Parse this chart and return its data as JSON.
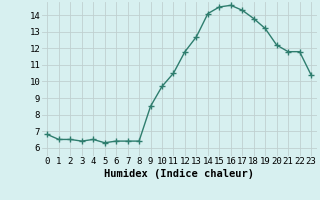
{
  "x": [
    0,
    1,
    2,
    3,
    4,
    5,
    6,
    7,
    8,
    9,
    10,
    11,
    12,
    13,
    14,
    15,
    16,
    17,
    18,
    19,
    20,
    21,
    22,
    23
  ],
  "y": [
    6.8,
    6.5,
    6.5,
    6.4,
    6.5,
    6.3,
    6.4,
    6.4,
    6.4,
    8.5,
    9.7,
    10.5,
    11.8,
    12.7,
    14.1,
    14.5,
    14.6,
    14.3,
    13.8,
    13.2,
    12.2,
    11.8,
    11.8,
    10.4
  ],
  "xlabel": "Humidex (Indice chaleur)",
  "ylim": [
    5.5,
    14.8
  ],
  "xlim": [
    -0.5,
    23.5
  ],
  "yticks": [
    6,
    7,
    8,
    9,
    10,
    11,
    12,
    13,
    14
  ],
  "xticks": [
    0,
    1,
    2,
    3,
    4,
    5,
    6,
    7,
    8,
    9,
    10,
    11,
    12,
    13,
    14,
    15,
    16,
    17,
    18,
    19,
    20,
    21,
    22,
    23
  ],
  "line_color": "#2e7d6e",
  "marker": "+",
  "marker_size": 4,
  "bg_color": "#d7f0f0",
  "grid_color": "#c0d0d0",
  "xlabel_fontsize": 7.5,
  "tick_fontsize": 6.5
}
